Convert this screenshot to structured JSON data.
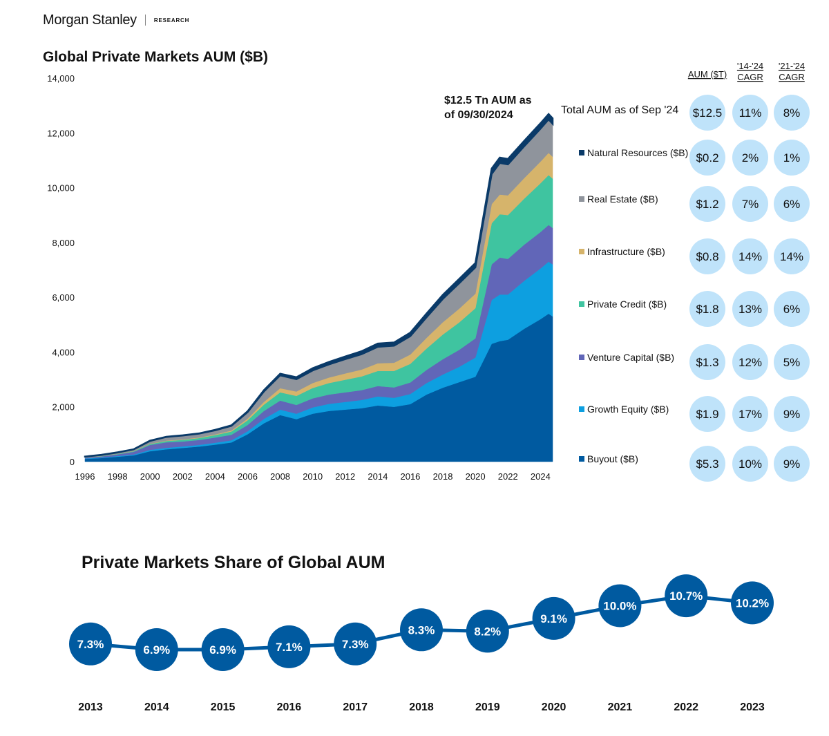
{
  "header": {
    "brand": "Morgan Stanley",
    "section": "RESEARCH"
  },
  "chart_data": [
    {
      "type": "area",
      "title": "Global Private Markets AUM ($B)",
      "xlabel": "",
      "ylabel": "",
      "ylim": [
        0,
        14000
      ],
      "yticks": [
        "0",
        "2,000",
        "4,000",
        "6,000",
        "8,000",
        "10,000",
        "12,000",
        "14,000"
      ],
      "xticks": [
        "1996",
        "1998",
        "2000",
        "2002",
        "2004",
        "2006",
        "2008",
        "2010",
        "2012",
        "2014",
        "2016",
        "2018",
        "2020",
        "2022",
        "2024"
      ],
      "xlim": [
        1996,
        2024.75
      ],
      "stacked": true,
      "annotation": [
        "$12.5 Tn AUM as",
        "of 09/30/2024"
      ],
      "x": [
        1996,
        1997,
        1998,
        1999,
        2000,
        2001,
        2002,
        2003,
        2004,
        2005,
        2006,
        2007,
        2008,
        2009,
        2010,
        2011,
        2012,
        2013,
        2014,
        2015,
        2016,
        2017,
        2018,
        2019,
        2020,
        2021,
        2021.5,
        2022,
        2023,
        2024,
        2024.5,
        2024.75
      ],
      "series": [
        {
          "name": "Buyout ($B)",
          "color": "#005aa0",
          "values": [
            100,
            130,
            180,
            230,
            380,
            450,
            500,
            550,
            620,
            700,
            1000,
            1400,
            1700,
            1550,
            1750,
            1850,
            1900,
            1950,
            2050,
            2000,
            2100,
            2450,
            2700,
            2900,
            3100,
            4300,
            4400,
            4450,
            4850,
            5200,
            5400,
            5300
          ]
        },
        {
          "name": "Growth Equity ($B)",
          "color": "#0d9fe0",
          "values": [
            15,
            20,
            25,
            30,
            50,
            55,
            55,
            60,
            70,
            80,
            110,
            160,
            200,
            200,
            230,
            260,
            280,
            300,
            330,
            330,
            370,
            420,
            480,
            560,
            700,
            1600,
            1700,
            1650,
            1750,
            1850,
            1900,
            1900
          ]
        },
        {
          "name": "Venture Capital ($B)",
          "color": "#6166b8",
          "values": [
            30,
            40,
            60,
            100,
            180,
            200,
            180,
            180,
            190,
            200,
            230,
            290,
            330,
            320,
            330,
            340,
            350,
            360,
            380,
            380,
            420,
            480,
            560,
            620,
            700,
            1300,
            1350,
            1300,
            1320,
            1330,
            1340,
            1330
          ]
        },
        {
          "name": "Private Credit ($B)",
          "color": "#3fc4a0",
          "values": [
            5,
            10,
            15,
            20,
            35,
            50,
            60,
            70,
            90,
            120,
            170,
            230,
            300,
            330,
            380,
            420,
            460,
            500,
            550,
            600,
            680,
            780,
            900,
            1000,
            1100,
            1500,
            1580,
            1600,
            1680,
            1780,
            1820,
            1800
          ]
        },
        {
          "name": "Infrastructure ($B)",
          "color": "#d6b46b",
          "values": [
            2,
            3,
            5,
            8,
            12,
            15,
            18,
            20,
            25,
            35,
            60,
            100,
            150,
            160,
            180,
            200,
            230,
            250,
            280,
            300,
            340,
            390,
            450,
            500,
            530,
            700,
            720,
            720,
            750,
            790,
            810,
            800
          ]
        },
        {
          "name": "Real Estate ($B)",
          "color": "#8f949c",
          "values": [
            30,
            40,
            50,
            60,
            100,
            130,
            140,
            140,
            150,
            170,
            240,
            380,
            470,
            450,
            460,
            480,
            520,
            560,
            600,
            620,
            670,
            750,
            850,
            930,
            960,
            1100,
            1150,
            1130,
            1160,
            1200,
            1220,
            1200
          ]
        },
        {
          "name": "Natural Resources ($B)",
          "color": "#0a3a68",
          "values": [
            5,
            5,
            5,
            5,
            10,
            10,
            10,
            10,
            15,
            20,
            30,
            50,
            60,
            70,
            80,
            90,
            100,
            110,
            120,
            120,
            130,
            140,
            150,
            160,
            160,
            200,
            200,
            200,
            200,
            200,
            200,
            200
          ]
        }
      ]
    },
    {
      "type": "table",
      "columns": [
        "AUM ($T)",
        "'14-'24 CAGR",
        "'21-'24 CAGR"
      ],
      "column_lines": [
        [
          "AUM ($T)"
        ],
        [
          "'14-'24",
          "CAGR"
        ],
        [
          "'21-'24",
          "CAGR"
        ]
      ],
      "bubble_color": "#bfe3fa",
      "rows": [
        {
          "label": "Total AUM as of Sep '24",
          "values": [
            "$12.5",
            "11%",
            "8%"
          ]
        },
        {
          "label": "Natural Resources ($B)",
          "color": "#0a3a68",
          "values": [
            "$0.2",
            "2%",
            "1%"
          ]
        },
        {
          "label": "Real Estate ($B)",
          "color": "#8f949c",
          "values": [
            "$1.2",
            "7%",
            "6%"
          ]
        },
        {
          "label": "Infrastructure ($B)",
          "color": "#d6b46b",
          "values": [
            "$0.8",
            "14%",
            "14%"
          ]
        },
        {
          "label": "Private Credit ($B)",
          "color": "#3fc4a0",
          "values": [
            "$1.8",
            "13%",
            "6%"
          ]
        },
        {
          "label": "Venture Capital ($B)",
          "color": "#6166b8",
          "values": [
            "$1.3",
            "12%",
            "5%"
          ]
        },
        {
          "label": "Growth Equity ($B)",
          "color": "#0d9fe0",
          "values": [
            "$1.9",
            "17%",
            "9%"
          ]
        },
        {
          "label": "Buyout ($B)",
          "color": "#005aa0",
          "values": [
            "$5.3",
            "10%",
            "9%"
          ]
        }
      ]
    },
    {
      "type": "line",
      "title": "Private Markets Share of Global AUM",
      "xlabel": "",
      "ylabel": "",
      "color": "#005aa0",
      "x": [
        "2013",
        "2014",
        "2015",
        "2016",
        "2017",
        "2018",
        "2019",
        "2020",
        "2021",
        "2022",
        "2023"
      ],
      "values": [
        7.3,
        6.9,
        6.9,
        7.1,
        7.3,
        8.3,
        8.2,
        9.1,
        10.0,
        10.7,
        10.2
      ],
      "labels": [
        "7.3%",
        "6.9%",
        "6.9%",
        "7.1%",
        "7.3%",
        "8.3%",
        "8.2%",
        "9.1%",
        "10.0%",
        "10.7%",
        "10.2%"
      ]
    }
  ]
}
